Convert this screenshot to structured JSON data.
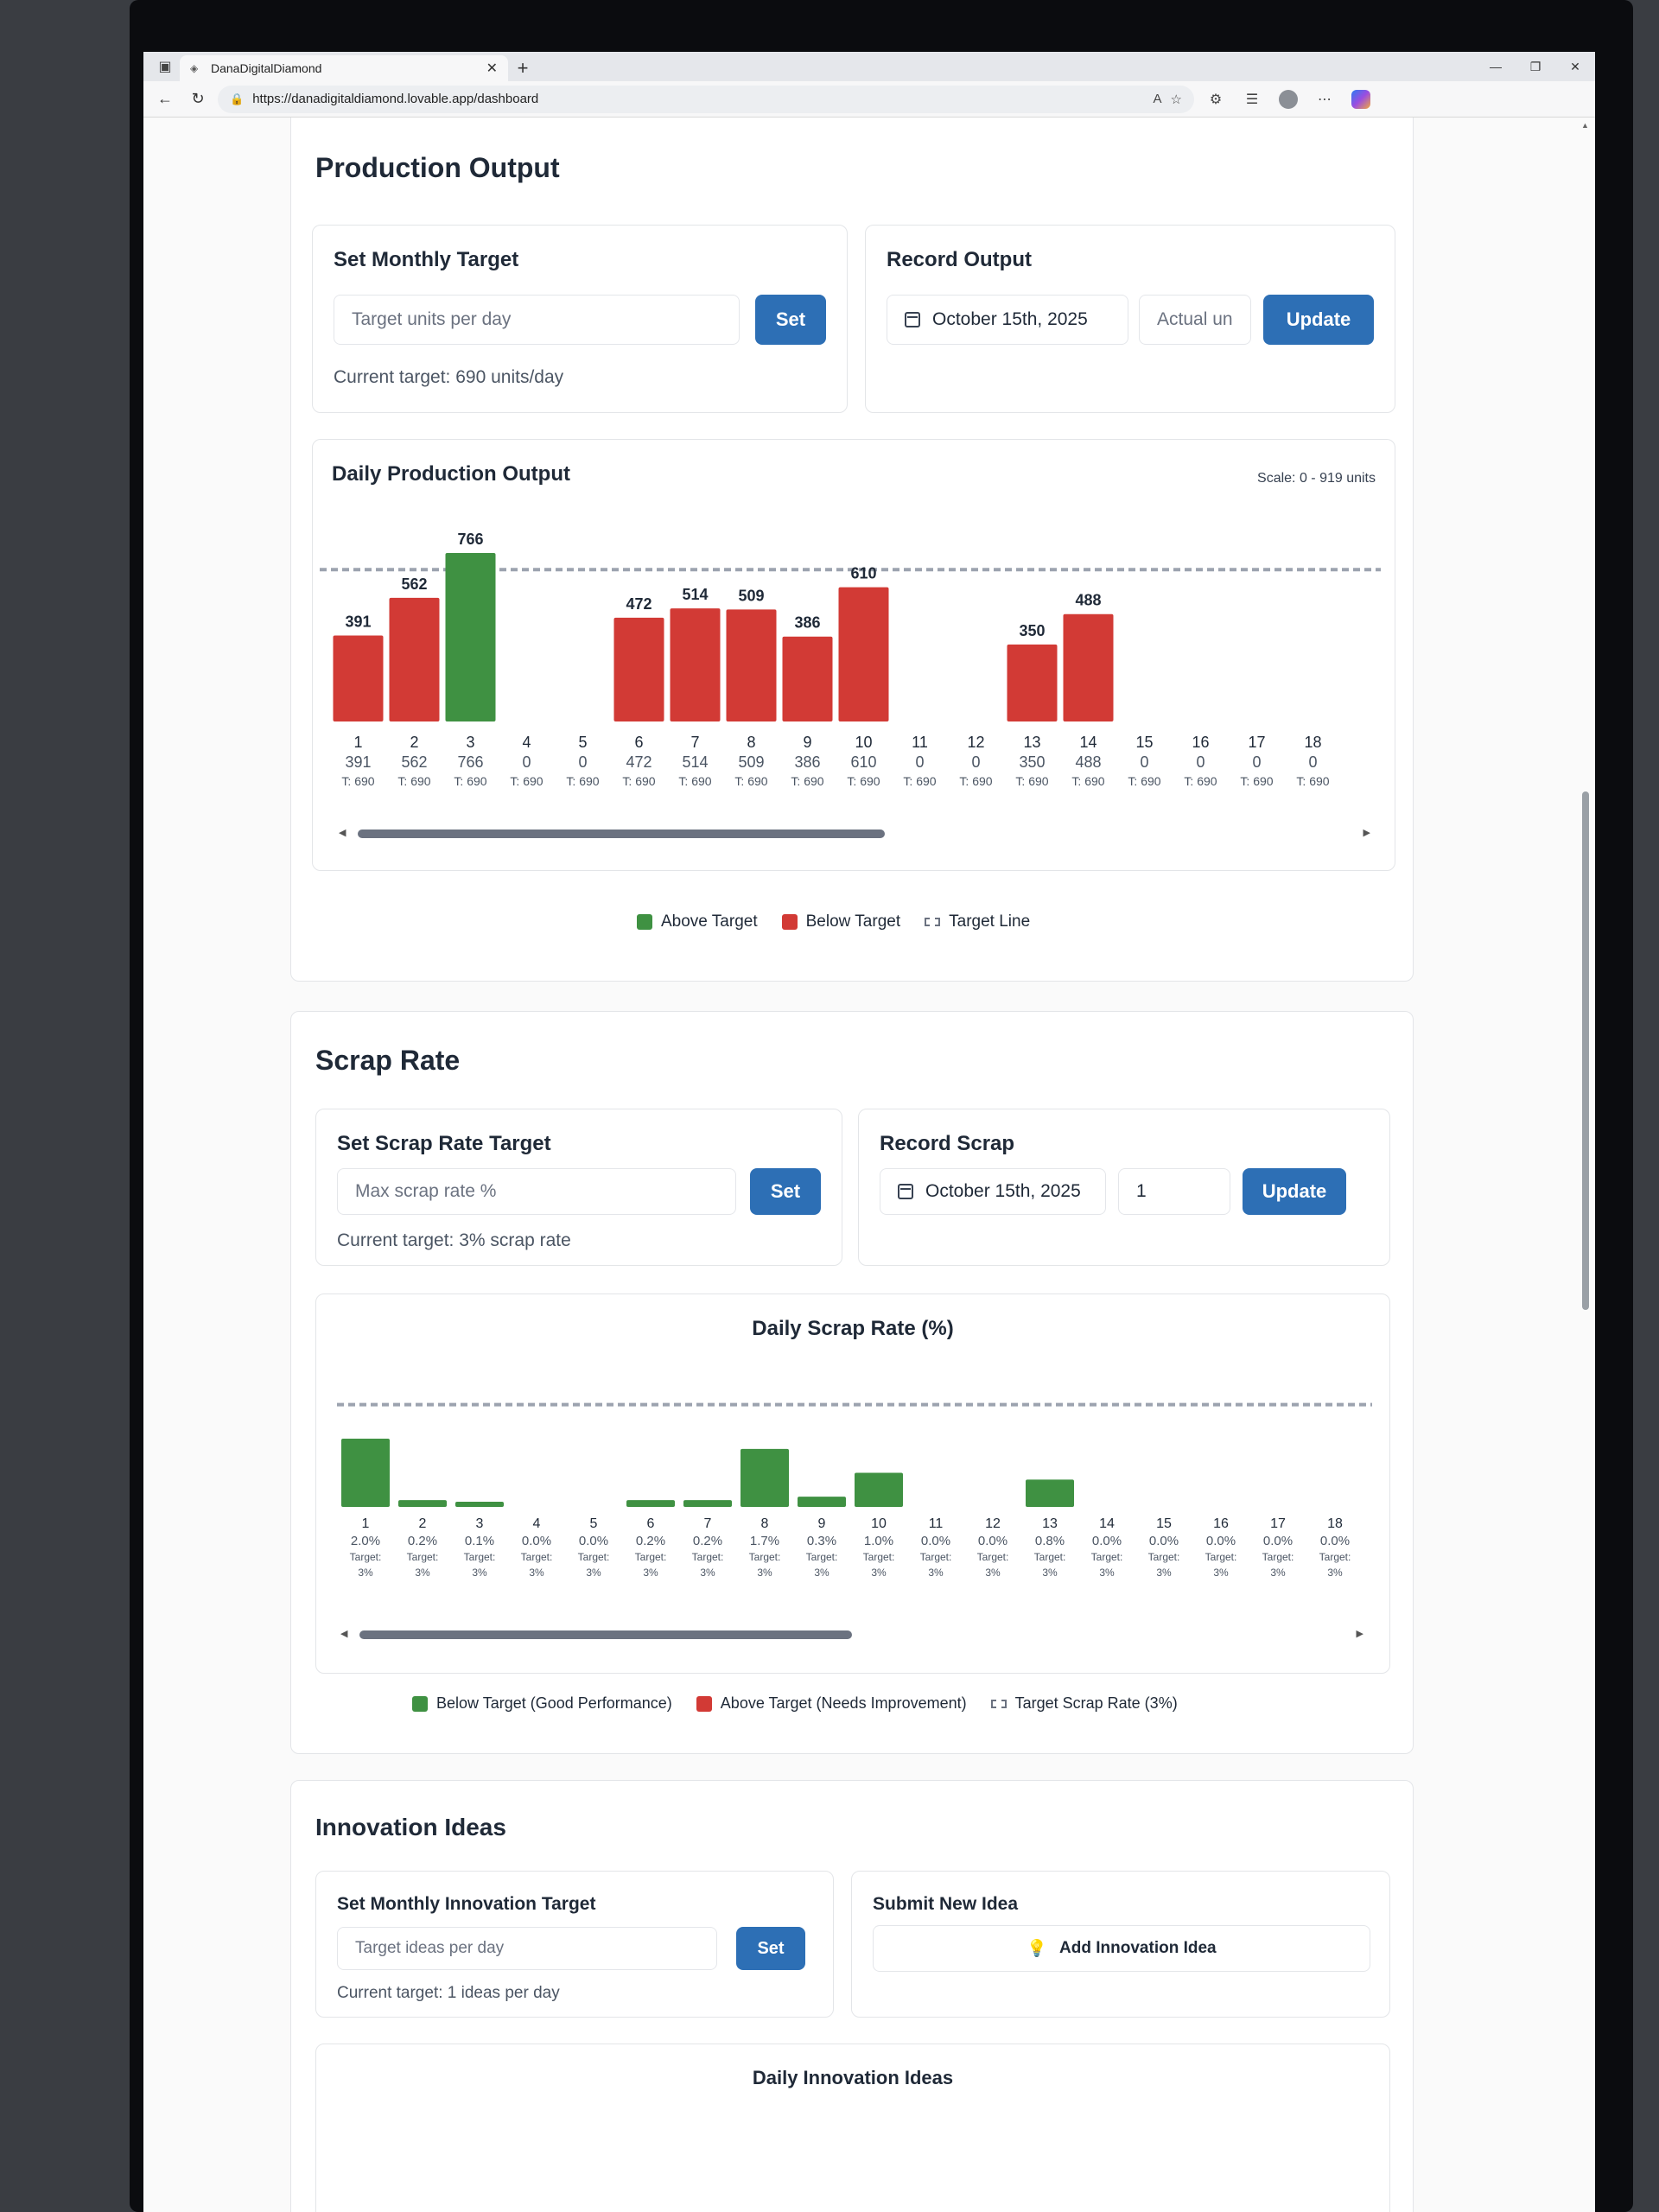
{
  "browser": {
    "tab_title": "DanaDigitalDiamond",
    "url": "https://danadigitaldiamond.lovable.app/dashboard",
    "icons": [
      "sidebar-icon",
      "close-icon",
      "plus-icon",
      "minimize-icon",
      "restore-icon",
      "window-close-icon",
      "back-icon",
      "refresh-icon",
      "lock-icon",
      "read-aloud-icon",
      "favorite-star-icon",
      "extensions-icon",
      "favorites-icon",
      "profile-icon",
      "more-icon",
      "copilot-icon"
    ]
  },
  "production": {
    "title": "Production Output",
    "target_card": {
      "title": "Set Monthly Target",
      "placeholder": "Target units per day",
      "button": "Set",
      "current": "Current target: 690 units/day"
    },
    "record_card": {
      "title": "Record Output",
      "date": "October 15th, 2025",
      "placeholder": "Actual un",
      "button": "Update"
    },
    "chart_title": "Daily Production Output",
    "scale_note": "Scale: 0 - 919 units",
    "legend": {
      "above": "Above Target",
      "below": "Below Target",
      "target": "Target Line"
    }
  },
  "scrap": {
    "title": "Scrap Rate",
    "target_card": {
      "title": "Set Scrap Rate Target",
      "placeholder": "Max scrap rate %",
      "button": "Set",
      "current": "Current target: 3% scrap rate"
    },
    "record_card": {
      "title": "Record Scrap",
      "date": "October 15th, 2025",
      "value": "1",
      "button": "Update"
    },
    "chart_title": "Daily Scrap Rate (%)",
    "legend": {
      "below": "Below Target (Good Performance)",
      "above": "Above Target (Needs Improvement)",
      "target": "Target Scrap Rate (3%)"
    }
  },
  "innovation": {
    "title": "Innovation Ideas",
    "target_card": {
      "title": "Set Monthly Innovation Target",
      "placeholder": "Target ideas per day",
      "button": "Set",
      "current": "Current target: 1 ideas per day"
    },
    "submit_card": {
      "title": "Submit New Idea",
      "button": "Add Innovation Idea"
    },
    "chart_title": "Daily Innovation Ideas"
  },
  "colors": {
    "above": "#3f9142",
    "below": "#d23a35",
    "good": "#3f9142",
    "accent": "#2d6fb5"
  },
  "chart_data": [
    {
      "type": "bar",
      "title": "Daily Production Output",
      "categories": [
        "1",
        "2",
        "3",
        "4",
        "5",
        "6",
        "7",
        "8",
        "9",
        "10",
        "11",
        "12",
        "13",
        "14",
        "15",
        "16",
        "17",
        "18"
      ],
      "values": [
        391,
        562,
        766,
        0,
        0,
        472,
        514,
        509,
        386,
        610,
        0,
        0,
        350,
        488,
        0,
        0,
        0,
        0
      ],
      "value_labels": [
        "391",
        "562",
        "766",
        "0",
        "0",
        "472",
        "514",
        "509",
        "386",
        "610",
        "0",
        "0",
        "350",
        "488",
        "0",
        "0",
        "0",
        "0"
      ],
      "target_labels": [
        "T: 690",
        "T: 690",
        "T: 690",
        "T: 690",
        "T: 690",
        "T: 690",
        "T: 690",
        "T: 690",
        "T: 690",
        "T: 690",
        "T: 690",
        "T: 690",
        "T: 690",
        "T: 690",
        "T: 690",
        "T: 690",
        "T: 690",
        "T: 690"
      ],
      "target": 690,
      "ylim": [
        0,
        919
      ]
    },
    {
      "type": "bar",
      "title": "Daily Scrap Rate (%)",
      "categories": [
        "1",
        "2",
        "3",
        "4",
        "5",
        "6",
        "7",
        "8",
        "9",
        "10",
        "11",
        "12",
        "13",
        "14",
        "15",
        "16",
        "17",
        "18"
      ],
      "values": [
        2.0,
        0.2,
        0.1,
        0.0,
        0.0,
        0.2,
        0.2,
        1.7,
        0.3,
        1.0,
        0.0,
        0.0,
        0.8,
        0.0,
        0.0,
        0.0,
        0.0,
        0.0
      ],
      "value_labels": [
        "2.0%",
        "0.2%",
        "0.1%",
        "0.0%",
        "0.0%",
        "0.2%",
        "0.2%",
        "1.7%",
        "0.3%",
        "1.0%",
        "0.0%",
        "0.0%",
        "0.8%",
        "0.0%",
        "0.0%",
        "0.0%",
        "0.0%",
        "0.0%"
      ],
      "target_word": "Target:",
      "target_value_label": "3%",
      "target": 3,
      "ylim": [
        0,
        3.8
      ]
    }
  ]
}
